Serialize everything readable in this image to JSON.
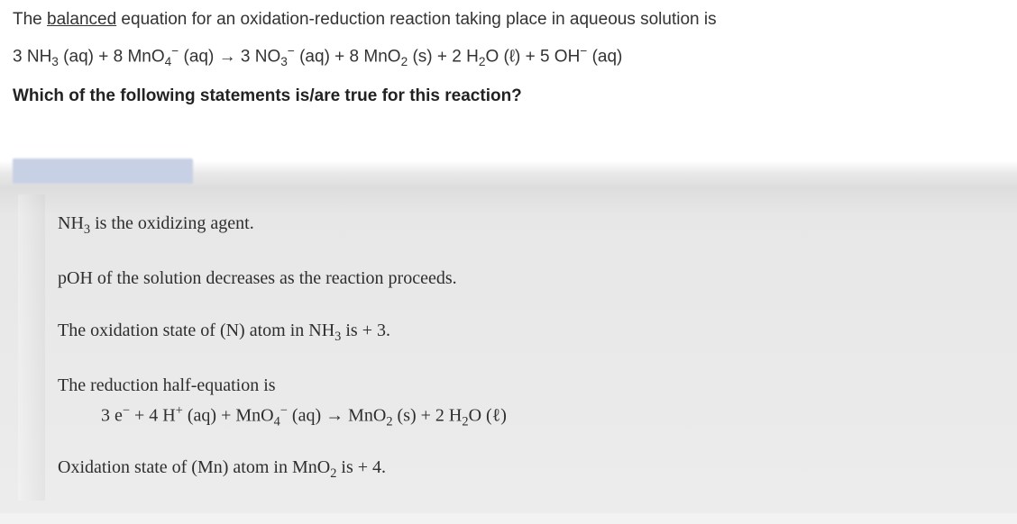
{
  "intro": {
    "prefix": "The ",
    "underlined": "balanced",
    "suffix": " equation for an oxidation-reduction reaction taking place in aqueous solution is"
  },
  "equation_html": "3 NH<span class='sub'>3</span> (aq) + 8 MnO<span class='sub'>4</span><span class='sup'>−</span> (aq) → 3 NO<span class='sub'>3</span><span class='sup'>−</span> (aq) + 8 MnO<span class='sub'>2</span> (s) + 2 H<span class='sub'>2</span>O (ℓ) + 5 OH<span class='sup'>−</span> (aq)",
  "question": "Which of the following statements is/are true for this reaction?",
  "options": {
    "opt1_html": "NH<span class='sub'>3</span> is the oxidizing agent.",
    "opt2": "pOH of the solution decreases as the reaction proceeds.",
    "opt3_html": "The oxidation state of (N) atom in NH<span class='sub'>3</span> is + 3.",
    "opt4_line1": "The reduction half-equation is",
    "opt4_line2_html": "3 e<span class='sup'>−</span> + 4 H<span class='sup'>+</span> (aq) + MnO<span class='sub'>4</span><span class='sup'>−</span> (aq) → MnO<span class='sub'>2</span> (s) + 2 H<span class='sub'>2</span>O (ℓ)",
    "opt5_html": "Oxidation state of (Mn) atom in MnO<span class='sub'>2</span> is + 4."
  },
  "colors": {
    "top_bg": "#ffffff",
    "options_bg": "#ececec",
    "text": "#333333",
    "options_text": "#2e2e2e",
    "redaction": "#c7d0e4"
  }
}
